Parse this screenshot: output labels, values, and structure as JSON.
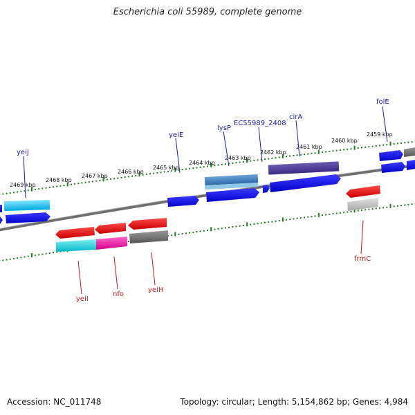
{
  "title": "Escherichia coli 55989, complete genome",
  "footer": {
    "accession": "Accession: NC_011748",
    "topology": "Topology: circular; Length: 5,154,862 bp; Genes: 4,984"
  },
  "colors": {
    "tick": "#1e7a1e",
    "backbone": "#808080",
    "forward_label": "#1a1ab4",
    "reverse_label": "#c01818"
  },
  "kbp_labels": [
    "2469 kbp",
    "2468 kbp",
    "2467 kbp",
    "2466 kbp",
    "2465 kbp",
    "2464 kbp",
    "2463 kbp",
    "2462 kbp",
    "2461 kbp",
    "2460 kbp",
    "2459 kbp"
  ],
  "forward_genes": [
    "yeiJ",
    "yeiE",
    "lysP",
    "EC55989_2408",
    "cirA",
    "folE"
  ],
  "reverse_genes": [
    "yeiI",
    "nfo",
    "yeiH",
    "frmC"
  ]
}
